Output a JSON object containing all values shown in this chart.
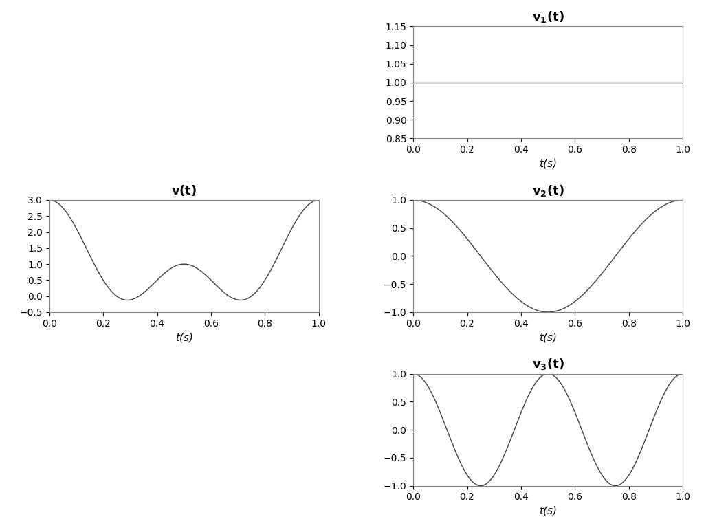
{
  "title_v": "v(t)",
  "title_v1": "v_1(t)",
  "title_v2": "v_2(t)",
  "title_v3": "v_3(t)",
  "xlabel": "t(s)",
  "xlim": [
    0,
    1
  ],
  "v1_ylim": [
    0.85,
    1.15
  ],
  "v1_yticks": [
    0.85,
    0.9,
    0.95,
    1.0,
    1.05,
    1.1,
    1.15
  ],
  "v2_ylim": [
    -1,
    1
  ],
  "v2_yticks": [
    -1,
    -0.5,
    0,
    0.5,
    1
  ],
  "v3_ylim": [
    -1,
    1
  ],
  "v3_yticks": [
    -1,
    -0.5,
    0,
    0.5,
    1
  ],
  "v_ylim": [
    -0.5,
    3
  ],
  "v_yticks": [
    -0.5,
    0,
    0.5,
    1,
    1.5,
    2,
    2.5,
    3
  ],
  "xticks": [
    0,
    0.2,
    0.4,
    0.6,
    0.8,
    1.0
  ],
  "line_color": "#404040",
  "bg_color": "#ffffff",
  "font_color": "#000000",
  "font_size": 11,
  "title_font_size": 13,
  "n_points": 1000,
  "v1_amplitude": 1.0,
  "v1_frequency": 0,
  "v2_amplitude": 1.0,
  "v2_frequency": 1.0,
  "v3_amplitude": 1.0,
  "v3_frequency": 2.0
}
